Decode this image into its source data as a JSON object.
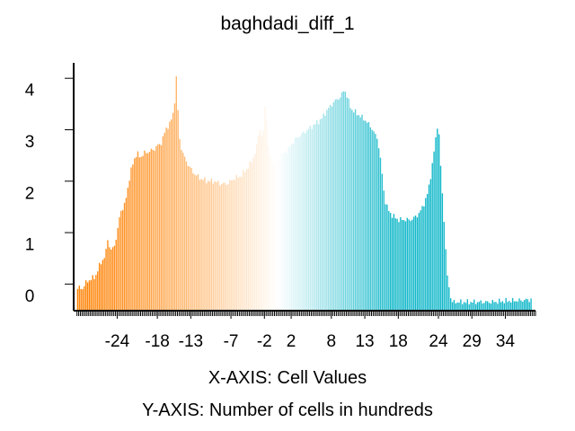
{
  "chart_data": {
    "type": "bar",
    "title": "baghdadi_diff_1",
    "xlabel": "X-AXIS: Cell Values",
    "ylabel": "Y-AXIS: Number of cells in hundreds",
    "x_ticks": [
      -24,
      -18,
      -13,
      -7,
      -2,
      2,
      8,
      13,
      18,
      24,
      29,
      34
    ],
    "y_ticks": [
      0,
      1,
      2,
      3,
      4
    ],
    "xlim": [
      -30.5,
      38.5
    ],
    "ylim": [
      0,
      4.8
    ],
    "grid": false,
    "legend": "none",
    "colormap": [
      "#ff8000",
      "#ffffff",
      "#10b7c9"
    ],
    "colormap_range": [
      -30,
      38
    ],
    "bin_width": 0.25,
    "profile": {
      "x": [
        -30.3,
        -29.8,
        -29.2,
        -28.5,
        -27.8,
        -27.2,
        -26.5,
        -25.7,
        -25.4,
        -25.0,
        -24.5,
        -24.0,
        -23.5,
        -22.8,
        -22.0,
        -21.5,
        -21.0,
        -20.5,
        -20.0,
        -19.5,
        -19.0,
        -18.5,
        -18.0,
        -17.5,
        -17.0,
        -16.5,
        -16.0,
        -15.5,
        -15.1,
        -14.7,
        -14.2,
        -13.5,
        -12.5,
        -11.5,
        -10.5,
        -9.5,
        -8.5,
        -7.5,
        -6.5,
        -5.5,
        -4.5,
        -3.8,
        -3.2,
        -2.7,
        -2.2,
        -1.8,
        -1.3,
        -0.8,
        -0.3,
        0.5,
        1.5,
        2.5,
        3.5,
        4.5,
        5.5,
        6.5,
        7.5,
        8.5,
        9.5,
        10.0,
        10.5,
        11.0,
        12.0,
        13.0,
        14.0,
        15.0,
        15.5,
        16.0,
        16.5,
        17.0,
        17.5,
        18.0,
        18.5,
        19.0,
        19.5,
        20.0,
        20.5,
        21.0,
        21.5,
        22.0,
        22.5,
        23.0,
        23.5,
        24.0,
        24.3,
        24.6,
        25.0,
        25.3,
        26.0,
        28.0,
        30.0,
        32.0,
        34.0,
        36.0,
        38.0
      ],
      "y": [
        0.15,
        0.45,
        0.4,
        0.55,
        0.6,
        0.65,
        0.9,
        1.05,
        1.4,
        1.15,
        1.2,
        1.45,
        1.9,
        2.05,
        2.65,
        2.9,
        3.05,
        2.95,
        3.05,
        3.05,
        3.1,
        3.1,
        3.2,
        3.2,
        3.4,
        3.55,
        3.65,
        3.85,
        4.55,
        3.35,
        3.05,
        2.85,
        2.65,
        2.55,
        2.5,
        2.5,
        2.45,
        2.45,
        2.55,
        2.6,
        2.75,
        2.9,
        3.1,
        3.55,
        3.3,
        4.1,
        3.0,
        2.9,
        2.85,
        3.0,
        3.1,
        3.3,
        3.4,
        3.5,
        3.6,
        3.7,
        3.9,
        4.05,
        4.15,
        4.3,
        4.1,
        3.9,
        3.8,
        3.7,
        3.55,
        3.3,
        2.8,
        2.15,
        1.95,
        1.85,
        1.8,
        1.75,
        1.75,
        1.75,
        1.75,
        1.75,
        1.8,
        1.85,
        1.95,
        2.1,
        2.3,
        2.7,
        3.2,
        3.7,
        2.95,
        2.3,
        1.5,
        0.7,
        0.15,
        0.15,
        0.15,
        0.15,
        0.17,
        0.18,
        0.2
      ]
    }
  }
}
